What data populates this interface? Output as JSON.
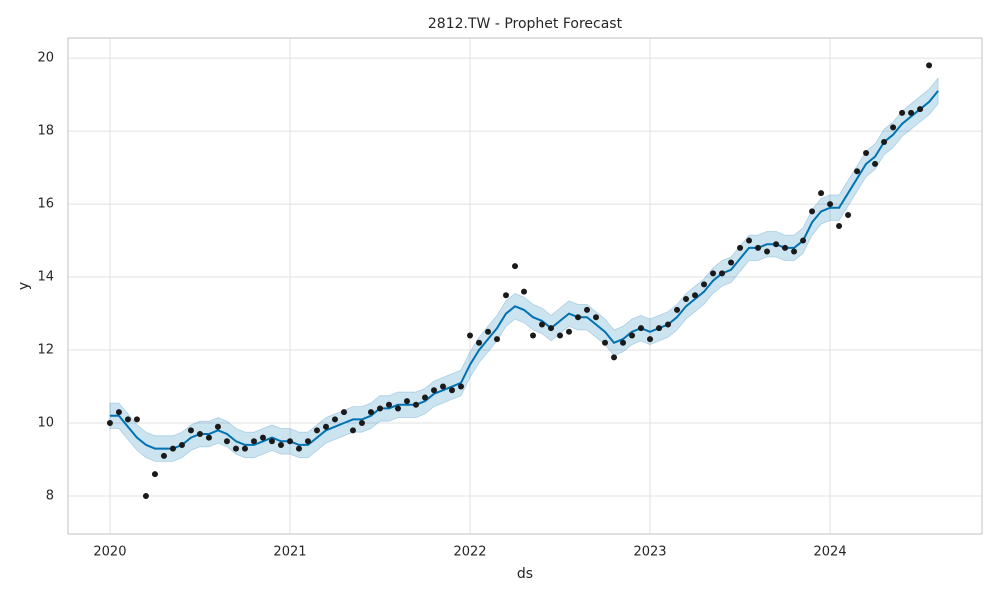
{
  "chart_data": {
    "type": "forecast",
    "title": "2812.TW - Prophet Forecast",
    "x_label": "ds",
    "y_label": "y",
    "grid": true,
    "xlim": [
      2019.767,
      2024.844
    ],
    "ylim": [
      6.96,
      20.55
    ],
    "xticks": [
      2020,
      2021,
      2022,
      2023,
      2024
    ],
    "yticks": [
      8,
      10,
      12,
      14,
      16,
      18,
      20
    ],
    "x": [
      2020,
      2020.05,
      2020.1,
      2020.15,
      2020.2,
      2020.25,
      2020.3,
      2020.35,
      2020.4,
      2020.45,
      2020.5,
      2020.55,
      2020.6,
      2020.65,
      2020.7,
      2020.75,
      2020.8,
      2020.85,
      2020.9,
      2020.95,
      2021,
      2021.05,
      2021.1,
      2021.15,
      2021.2,
      2021.25,
      2021.3,
      2021.35,
      2021.4,
      2021.45,
      2021.5,
      2021.55,
      2021.6,
      2021.65,
      2021.7,
      2021.75,
      2021.8,
      2021.85,
      2021.9,
      2021.95,
      2022,
      2022.05,
      2022.1,
      2022.15,
      2022.2,
      2022.25,
      2022.3,
      2022.35,
      2022.4,
      2022.45,
      2022.5,
      2022.55,
      2022.6,
      2022.65,
      2022.7,
      2022.75,
      2022.8,
      2022.85,
      2022.9,
      2022.95,
      2023,
      2023.05,
      2023.1,
      2023.15,
      2023.2,
      2023.25,
      2023.3,
      2023.35,
      2023.4,
      2023.45,
      2023.5,
      2023.55,
      2023.6,
      2023.65,
      2023.7,
      2023.75,
      2023.8,
      2023.85,
      2023.9,
      2023.95,
      2024,
      2024.05,
      2024.1,
      2024.15,
      2024.2,
      2024.25,
      2024.3,
      2024.35,
      2024.4,
      2024.45,
      2024.5,
      2024.55,
      2024.6
    ],
    "points": {
      "color": "#1a1a1a",
      "values": [
        10.0,
        10.3,
        10.1,
        10.1,
        8.0,
        8.6,
        9.1,
        9.3,
        9.4,
        9.8,
        9.7,
        9.6,
        9.9,
        9.5,
        9.3,
        9.3,
        9.5,
        9.6,
        9.5,
        9.4,
        9.5,
        9.3,
        9.5,
        9.8,
        9.9,
        10.1,
        10.3,
        9.8,
        10.0,
        10.3,
        10.4,
        10.5,
        10.4,
        10.6,
        10.5,
        10.7,
        10.9,
        11.0,
        10.9,
        11.0,
        12.4,
        12.2,
        12.5,
        12.3,
        13.5,
        14.3,
        13.6,
        12.4,
        12.7,
        12.6,
        12.4,
        12.5,
        12.9,
        13.1,
        12.9,
        12.2,
        11.8,
        12.2,
        12.4,
        12.6,
        12.3,
        12.6,
        12.7,
        13.1,
        13.4,
        13.5,
        13.8,
        14.1,
        14.1,
        14.4,
        14.8,
        15.0,
        14.8,
        14.7,
        14.9,
        14.8,
        14.7,
        15.0,
        15.8,
        16.3,
        16.0,
        15.4,
        15.7,
        16.9,
        17.4,
        17.1,
        17.7,
        18.1,
        18.5,
        18.5,
        18.6,
        19.8,
        null
      ]
    },
    "forecast": {
      "color": "#0072b2",
      "values": [
        10.2,
        10.2,
        9.9,
        9.6,
        9.4,
        9.3,
        9.3,
        9.3,
        9.4,
        9.6,
        9.7,
        9.7,
        9.8,
        9.7,
        9.5,
        9.4,
        9.4,
        9.5,
        9.6,
        9.5,
        9.5,
        9.4,
        9.4,
        9.6,
        9.8,
        9.9,
        10.0,
        10.1,
        10.1,
        10.2,
        10.4,
        10.4,
        10.5,
        10.5,
        10.5,
        10.6,
        10.8,
        10.9,
        11.0,
        11.1,
        11.6,
        12.0,
        12.3,
        12.6,
        13.0,
        13.2,
        13.1,
        12.9,
        12.8,
        12.6,
        12.8,
        13.0,
        12.9,
        12.9,
        12.7,
        12.5,
        12.2,
        12.3,
        12.5,
        12.6,
        12.5,
        12.6,
        12.7,
        12.9,
        13.2,
        13.4,
        13.6,
        13.9,
        14.1,
        14.2,
        14.5,
        14.8,
        14.8,
        14.9,
        14.9,
        14.8,
        14.8,
        15.0,
        15.5,
        15.8,
        15.9,
        15.9,
        16.3,
        16.7,
        17.1,
        17.3,
        17.7,
        17.9,
        18.2,
        18.4,
        18.6,
        18.8,
        19.1
      ]
    },
    "band": {
      "color": "#0072b2",
      "lower": [
        9.85,
        9.85,
        9.55,
        9.25,
        9.05,
        8.95,
        8.95,
        8.95,
        9.05,
        9.25,
        9.35,
        9.35,
        9.45,
        9.35,
        9.15,
        9.05,
        9.05,
        9.15,
        9.25,
        9.15,
        9.15,
        9.05,
        9.05,
        9.25,
        9.45,
        9.55,
        9.65,
        9.75,
        9.75,
        9.85,
        10.05,
        10.05,
        10.15,
        10.15,
        10.15,
        10.25,
        10.45,
        10.55,
        10.65,
        10.75,
        11.25,
        11.65,
        11.95,
        12.25,
        12.65,
        12.85,
        12.75,
        12.55,
        12.45,
        12.25,
        12.45,
        12.65,
        12.55,
        12.55,
        12.35,
        12.15,
        11.85,
        11.95,
        12.15,
        12.25,
        12.15,
        12.25,
        12.35,
        12.55,
        12.85,
        13.05,
        13.25,
        13.55,
        13.75,
        13.85,
        14.15,
        14.45,
        14.45,
        14.55,
        14.55,
        14.45,
        14.45,
        14.65,
        15.15,
        15.45,
        15.55,
        15.55,
        15.95,
        16.35,
        16.75,
        16.95,
        17.35,
        17.55,
        17.85,
        18.05,
        18.25,
        18.45,
        18.75
      ],
      "upper": [
        10.55,
        10.55,
        10.25,
        9.95,
        9.75,
        9.65,
        9.65,
        9.65,
        9.75,
        9.95,
        10.05,
        10.05,
        10.15,
        10.05,
        9.85,
        9.75,
        9.75,
        9.85,
        9.95,
        9.85,
        9.85,
        9.75,
        9.75,
        9.95,
        10.15,
        10.25,
        10.35,
        10.45,
        10.45,
        10.55,
        10.75,
        10.75,
        10.85,
        10.85,
        10.85,
        10.95,
        11.15,
        11.25,
        11.35,
        11.45,
        11.95,
        12.35,
        12.65,
        12.95,
        13.35,
        13.55,
        13.45,
        13.25,
        13.15,
        12.95,
        13.15,
        13.35,
        13.25,
        13.25,
        13.05,
        12.85,
        12.55,
        12.65,
        12.85,
        12.95,
        12.85,
        12.95,
        13.05,
        13.25,
        13.55,
        13.75,
        13.95,
        14.25,
        14.45,
        14.55,
        14.85,
        15.15,
        15.15,
        15.25,
        15.25,
        15.15,
        15.15,
        15.35,
        15.85,
        16.15,
        16.25,
        16.25,
        16.65,
        17.05,
        17.45,
        17.65,
        18.05,
        18.25,
        18.55,
        18.75,
        18.95,
        19.15,
        19.45
      ]
    }
  }
}
